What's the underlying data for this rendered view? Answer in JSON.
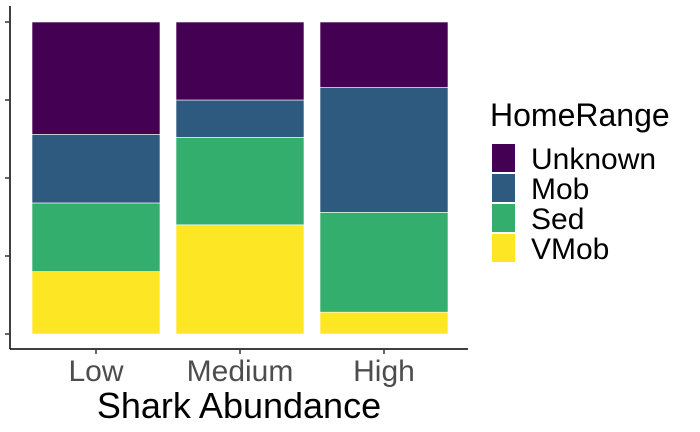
{
  "chart_data": {
    "type": "bar",
    "stacked": true,
    "normalized": true,
    "categories": [
      "Low",
      "Medium",
      "High"
    ],
    "series": [
      {
        "name": "Unknown",
        "color": "#440154",
        "values": [
          0.36,
          0.25,
          0.21
        ]
      },
      {
        "name": "Mob",
        "color": "#2E5A80",
        "values": [
          0.22,
          0.12,
          0.4
        ]
      },
      {
        "name": "Sed",
        "color": "#33AE6C",
        "values": [
          0.22,
          0.28,
          0.32
        ]
      },
      {
        "name": "VMob",
        "color": "#FDE725",
        "values": [
          0.2,
          0.35,
          0.07
        ]
      }
    ],
    "title": "",
    "xlabel": "Shark Abundance",
    "ylabel": "",
    "ylim": [
      0,
      1
    ],
    "y_tick_count": 5,
    "y_tick_labels_visible": false,
    "grid": false,
    "legend": {
      "title": "HomeRange",
      "position": "right"
    }
  }
}
